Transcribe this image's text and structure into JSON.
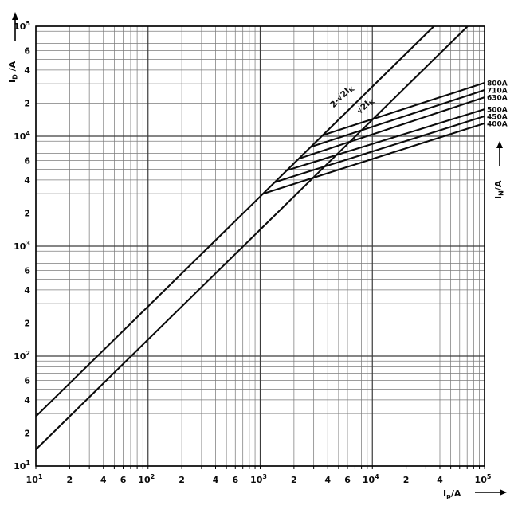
{
  "chart_data": {
    "type": "line",
    "scale": "log-log",
    "grid": "on, full minor log grid both axes",
    "xlim": [
      10,
      100000
    ],
    "ylim": [
      10,
      100000
    ],
    "colors": {
      "background": "#ffffff",
      "curve": "#0b0b0b",
      "grid_minor": "#7d7d7d",
      "grid_major": "#3c3c3c",
      "frame": "#000000"
    },
    "x_axis": {
      "label_main": "I",
      "label_sub": "p",
      "label_suffix": "/A",
      "ticks": [
        {
          "v": 10,
          "t": "10",
          "e": "1"
        },
        {
          "v": 20,
          "t": "2"
        },
        {
          "v": 40,
          "t": "4"
        },
        {
          "v": 60,
          "t": "6"
        },
        {
          "v": 100,
          "t": "10",
          "e": "2"
        },
        {
          "v": 200,
          "t": "2"
        },
        {
          "v": 400,
          "t": "4"
        },
        {
          "v": 600,
          "t": "6"
        },
        {
          "v": 1000,
          "t": "10",
          "e": "3"
        },
        {
          "v": 2000,
          "t": "2"
        },
        {
          "v": 4000,
          "t": "4"
        },
        {
          "v": 6000,
          "t": "6"
        },
        {
          "v": 10000,
          "t": "10",
          "e": "4"
        },
        {
          "v": 20000,
          "t": "2"
        },
        {
          "v": 40000,
          "t": "4"
        },
        {
          "v": 100000,
          "t": "10",
          "e": "5"
        }
      ]
    },
    "y_axis": {
      "label_main": "I",
      "label_sub": "D",
      "label_suffix": " /A",
      "ticks": [
        {
          "v": 10,
          "t": "10",
          "e": "1"
        },
        {
          "v": 20,
          "t": "2"
        },
        {
          "v": 40,
          "t": "4"
        },
        {
          "v": 60,
          "t": "6"
        },
        {
          "v": 100,
          "t": "10",
          "e": "2"
        },
        {
          "v": 200,
          "t": "2"
        },
        {
          "v": 400,
          "t": "4"
        },
        {
          "v": 600,
          "t": "6"
        },
        {
          "v": 1000,
          "t": "10",
          "e": "3"
        },
        {
          "v": 2000,
          "t": "2"
        },
        {
          "v": 4000,
          "t": "4"
        },
        {
          "v": 6000,
          "t": "6"
        },
        {
          "v": 10000,
          "t": "10",
          "e": "4"
        },
        {
          "v": 20000,
          "t": "2"
        },
        {
          "v": 40000,
          "t": "4"
        },
        {
          "v": 60000,
          "t": "6"
        },
        {
          "v": 100000,
          "t": "10",
          "e": "5"
        }
      ]
    },
    "right_axis_label": {
      "label_main": "I",
      "label_sub": "N",
      "label_suffix": "/A"
    },
    "reference_lines": [
      {
        "label_pre": "2·√2I",
        "label_sub": "K",
        "factor": 2.8284,
        "desc": "I_D = 2·√2 · I_K, straight slope-1 line from (10, 28.3) to (35360, 100000)"
      },
      {
        "label_pre": "√2I",
        "label_sub": "K",
        "factor": 1.4142,
        "desc": "I_D = √2 · I_K, straight slope-1 line from (10, 14.1) to (70710, 100000)"
      }
    ],
    "series": [
      {
        "name": "400A",
        "rated_current_A": 400,
        "branch_point": [
          1060,
          2998
        ],
        "end_point": [
          100000,
          13100
        ]
      },
      {
        "name": "450A",
        "rated_current_A": 450,
        "branch_point": [
          1350,
          3818
        ],
        "end_point": [
          100000,
          15200
        ]
      },
      {
        "name": "500A",
        "rated_current_A": 500,
        "branch_point": [
          1730,
          4892
        ],
        "end_point": [
          100000,
          17600
        ]
      },
      {
        "name": "630A",
        "rated_current_A": 630,
        "branch_point": [
          2210,
          6250
        ],
        "end_point": [
          100000,
          22600
        ]
      },
      {
        "name": "710A",
        "rated_current_A": 710,
        "branch_point": [
          2830,
          8003
        ],
        "end_point": [
          100000,
          26300
        ]
      },
      {
        "name": "800A",
        "rated_current_A": 800,
        "branch_point": [
          3610,
          10209
        ],
        "end_point": [
          100000,
          30600
        ]
      }
    ],
    "series_note": "Each fuse curve leaves the 2·√2·IK line at its branch point and rises as a straight log-log segment (slope ≈ 1/3) to its end point at Ip = 10^5."
  }
}
